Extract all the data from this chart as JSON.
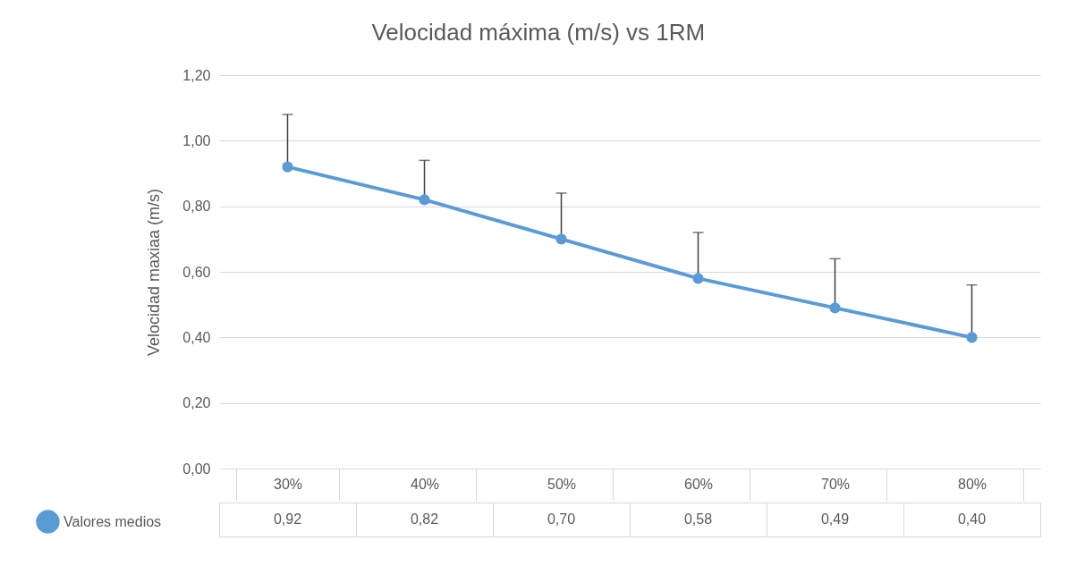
{
  "chart_data": {
    "type": "line",
    "title": "Velocidad máxima (m/s) vs 1RM",
    "ylabel": "Velocidad maxiaa (m/s)",
    "categories": [
      "30%",
      "40%",
      "50%",
      "60%",
      "70%",
      "80%"
    ],
    "series": [
      {
        "name": "Valores medios",
        "color": "#5b9bd5",
        "values": [
          0.92,
          0.82,
          0.7,
          0.58,
          0.49,
          0.4
        ],
        "errors": [
          [
            0.92,
            1.08
          ],
          [
            0.82,
            0.94
          ],
          [
            0.7,
            0.84
          ],
          [
            0.58,
            0.72
          ],
          [
            0.49,
            0.64
          ],
          [
            0.4,
            0.56
          ]
        ],
        "value_labels": [
          "0,92",
          "0,82",
          "0,70",
          "0,58",
          "0,49",
          "0,40"
        ]
      }
    ],
    "ylim": [
      0,
      1.2
    ],
    "yticks": [
      {
        "value": 0,
        "label": "0,00"
      },
      {
        "value": 0.2,
        "label": "0,20"
      },
      {
        "value": 0.4,
        "label": "0,40"
      },
      {
        "value": 0.6,
        "label": "0,60"
      },
      {
        "value": 0.8,
        "label": "0,80"
      },
      {
        "value": 1.0,
        "label": "1,00"
      },
      {
        "value": 1.2,
        "label": "1,20"
      }
    ],
    "grid": "y",
    "marker": "circle",
    "legend": "bottom left",
    "line_style": "solid"
  }
}
